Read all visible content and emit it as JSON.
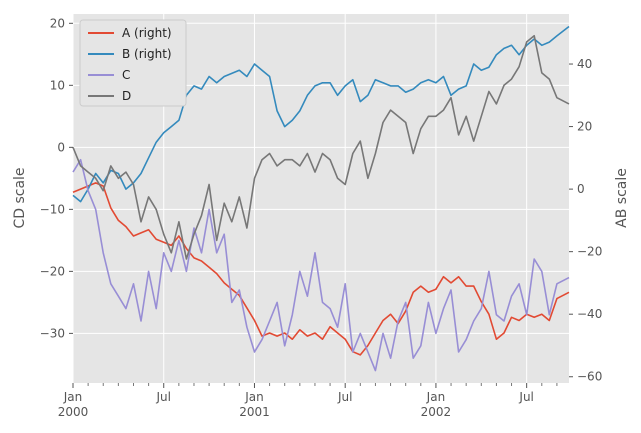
{
  "chart_data": {
    "type": "line",
    "style": "ggplot",
    "grid": true,
    "legend": {
      "placement": "top-left",
      "entries": [
        {
          "label": "A (right)",
          "color": "#E24A33"
        },
        {
          "label": "B (right)",
          "color": "#348ABD"
        },
        {
          "label": "C",
          "color": "#988ED5"
        },
        {
          "label": "D",
          "color": "#777777"
        }
      ]
    },
    "x": {
      "ticks": [
        {
          "month": 0,
          "line1": "Jan",
          "line2": "2000"
        },
        {
          "month": 6,
          "line1": "Jul",
          "line2": ""
        },
        {
          "month": 12,
          "line1": "Jan",
          "line2": "2001"
        },
        {
          "month": 18,
          "line1": "Jul",
          "line2": ""
        },
        {
          "month": 24,
          "line1": "Jan",
          "line2": "2002"
        },
        {
          "month": 30,
          "line1": "Jul",
          "line2": ""
        }
      ],
      "range_months": [
        0,
        32.8
      ]
    },
    "y_left": {
      "label": "CD scale",
      "lim": [
        -38,
        21.5
      ],
      "ticks": [
        20,
        10,
        0,
        -10,
        -20,
        -30
      ]
    },
    "y_right": {
      "label": "AB scale",
      "lim": [
        -62,
        56
      ],
      "ticks": [
        40,
        20,
        0,
        -20,
        -40,
        -60
      ]
    },
    "series": [
      {
        "name": "A (right)",
        "axis": "right",
        "color": "#E24A33",
        "months": [
          0,
          0.5,
          1,
          1.5,
          2,
          2.5,
          3,
          3.5,
          4,
          4.5,
          5,
          5.5,
          6,
          6.5,
          7,
          7.5,
          8,
          8.5,
          9,
          9.5,
          10,
          10.5,
          11,
          11.5,
          12,
          12.5,
          13,
          13.5,
          14,
          14.5,
          15,
          15.5,
          16,
          16.5,
          17,
          17.5,
          18,
          18.5,
          19,
          19.5,
          20,
          20.5,
          21,
          21.5,
          22,
          22.5,
          23,
          23.5,
          24,
          24.5,
          25,
          25.5,
          26,
          26.5,
          27,
          27.5,
          28,
          28.5,
          29,
          29.5,
          30,
          30.5,
          31,
          31.5,
          32,
          32.8
        ],
        "values": [
          -1,
          0,
          1,
          2,
          1,
          -6,
          -10,
          -12,
          -15,
          -14,
          -13,
          -16,
          -17,
          -18,
          -15,
          -19,
          -22,
          -23,
          -25,
          -27,
          -30,
          -32,
          -34,
          -38,
          -42,
          -47,
          -46,
          -47,
          -46,
          -48,
          -45,
          -47,
          -46,
          -48,
          -44,
          -46,
          -48,
          -52,
          -53,
          -50,
          -46,
          -42,
          -40,
          -43,
          -39,
          -33,
          -31,
          -33,
          -32,
          -28,
          -30,
          -28,
          -31,
          -31,
          -36,
          -40,
          -48,
          -46,
          -41,
          -42,
          -40,
          -41,
          -40,
          -42,
          -35,
          -33
        ]
      },
      {
        "name": "B (right)",
        "axis": "right",
        "color": "#348ABD",
        "months": [
          0,
          0.5,
          1,
          1.5,
          2,
          2.5,
          3,
          3.5,
          4,
          4.5,
          5,
          5.5,
          6,
          6.5,
          7,
          7.5,
          8,
          8.5,
          9,
          9.5,
          10,
          10.5,
          11,
          11.5,
          12,
          12.5,
          13,
          13.5,
          14,
          14.5,
          15,
          15.5,
          16,
          16.5,
          17,
          17.5,
          18,
          18.5,
          19,
          19.5,
          20,
          20.5,
          21,
          21.5,
          22,
          22.5,
          23,
          23.5,
          24,
          24.5,
          25,
          25.5,
          26,
          26.5,
          27,
          27.5,
          28,
          28.5,
          29,
          29.5,
          30,
          30.5,
          31,
          31.5,
          32,
          32.8
        ],
        "values": [
          -2,
          -4,
          0,
          5,
          2,
          6,
          5,
          0,
          2,
          5,
          10,
          15,
          18,
          20,
          22,
          30,
          33,
          32,
          36,
          34,
          36,
          37,
          38,
          36,
          40,
          38,
          36,
          25,
          20,
          22,
          25,
          30,
          33,
          34,
          34,
          30,
          33,
          35,
          28,
          30,
          35,
          34,
          33,
          33,
          31,
          32,
          34,
          35,
          34,
          36,
          30,
          32,
          33,
          40,
          38,
          39,
          43,
          45,
          46,
          43,
          46,
          48,
          46,
          47,
          49,
          52
        ]
      },
      {
        "name": "C",
        "axis": "left",
        "color": "#988ED5",
        "months": [
          0,
          0.5,
          1,
          1.5,
          2,
          2.5,
          3,
          3.5,
          4,
          4.5,
          5,
          5.5,
          6,
          6.5,
          7,
          7.5,
          8,
          8.5,
          9,
          9.5,
          10,
          10.5,
          11,
          11.5,
          12,
          12.5,
          13,
          13.5,
          14,
          14.5,
          15,
          15.5,
          16,
          16.5,
          17,
          17.5,
          18,
          18.5,
          19,
          19.5,
          20,
          20.5,
          21,
          21.5,
          22,
          22.5,
          23,
          23.5,
          24,
          24.5,
          25,
          25.5,
          26,
          26.5,
          27,
          27.5,
          28,
          28.5,
          29,
          29.5,
          30,
          30.5,
          31,
          31.5,
          32,
          32.8
        ],
        "values": [
          -4,
          -2,
          -7,
          -10,
          -17,
          -22,
          -24,
          -26,
          -22,
          -28,
          -20,
          -26,
          -17,
          -20,
          -15,
          -20,
          -13,
          -17,
          -10,
          -17,
          -14,
          -25,
          -23,
          -29,
          -33,
          -31,
          -28,
          -25,
          -32,
          -27,
          -20,
          -24,
          -17,
          -25,
          -26,
          -29,
          -22,
          -33,
          -30,
          -33,
          -36,
          -30,
          -34,
          -28,
          -25,
          -34,
          -32,
          -25,
          -30,
          -26,
          -23,
          -33,
          -31,
          -28,
          -26,
          -20,
          -27,
          -28,
          -24,
          -22,
          -27,
          -18,
          -20,
          -27,
          -22,
          -21
        ]
      },
      {
        "name": "D",
        "axis": "left",
        "color": "#777777",
        "months": [
          0,
          0.5,
          1,
          1.5,
          2,
          2.5,
          3,
          3.5,
          4,
          4.5,
          5,
          5.5,
          6,
          6.5,
          7,
          7.5,
          8,
          8.5,
          9,
          9.5,
          10,
          10.5,
          11,
          11.5,
          12,
          12.5,
          13,
          13.5,
          14,
          14.5,
          15,
          15.5,
          16,
          16.5,
          17,
          17.5,
          18,
          18.5,
          19,
          19.5,
          20,
          20.5,
          21,
          21.5,
          22,
          22.5,
          23,
          23.5,
          24,
          24.5,
          25,
          25.5,
          26,
          26.5,
          27,
          27.5,
          28,
          28.5,
          29,
          29.5,
          30,
          30.5,
          31,
          31.5,
          32,
          32.8
        ],
        "values": [
          0,
          -3,
          -4,
          -5,
          -7,
          -3,
          -5,
          -4,
          -6,
          -12,
          -8,
          -10,
          -14,
          -17,
          -12,
          -18,
          -14,
          -11,
          -6,
          -15,
          -9,
          -12,
          -8,
          -13,
          -5,
          -2,
          -1,
          -3,
          -2,
          -2,
          -3,
          -1,
          -4,
          -1,
          -2,
          -5,
          -6,
          -1,
          1,
          -5,
          -1,
          4,
          6,
          5,
          4,
          -1,
          3,
          5,
          5,
          6,
          8,
          2,
          5,
          1,
          5,
          9,
          7,
          10,
          11,
          13,
          17,
          18,
          12,
          11,
          8,
          7
        ]
      }
    ]
  }
}
